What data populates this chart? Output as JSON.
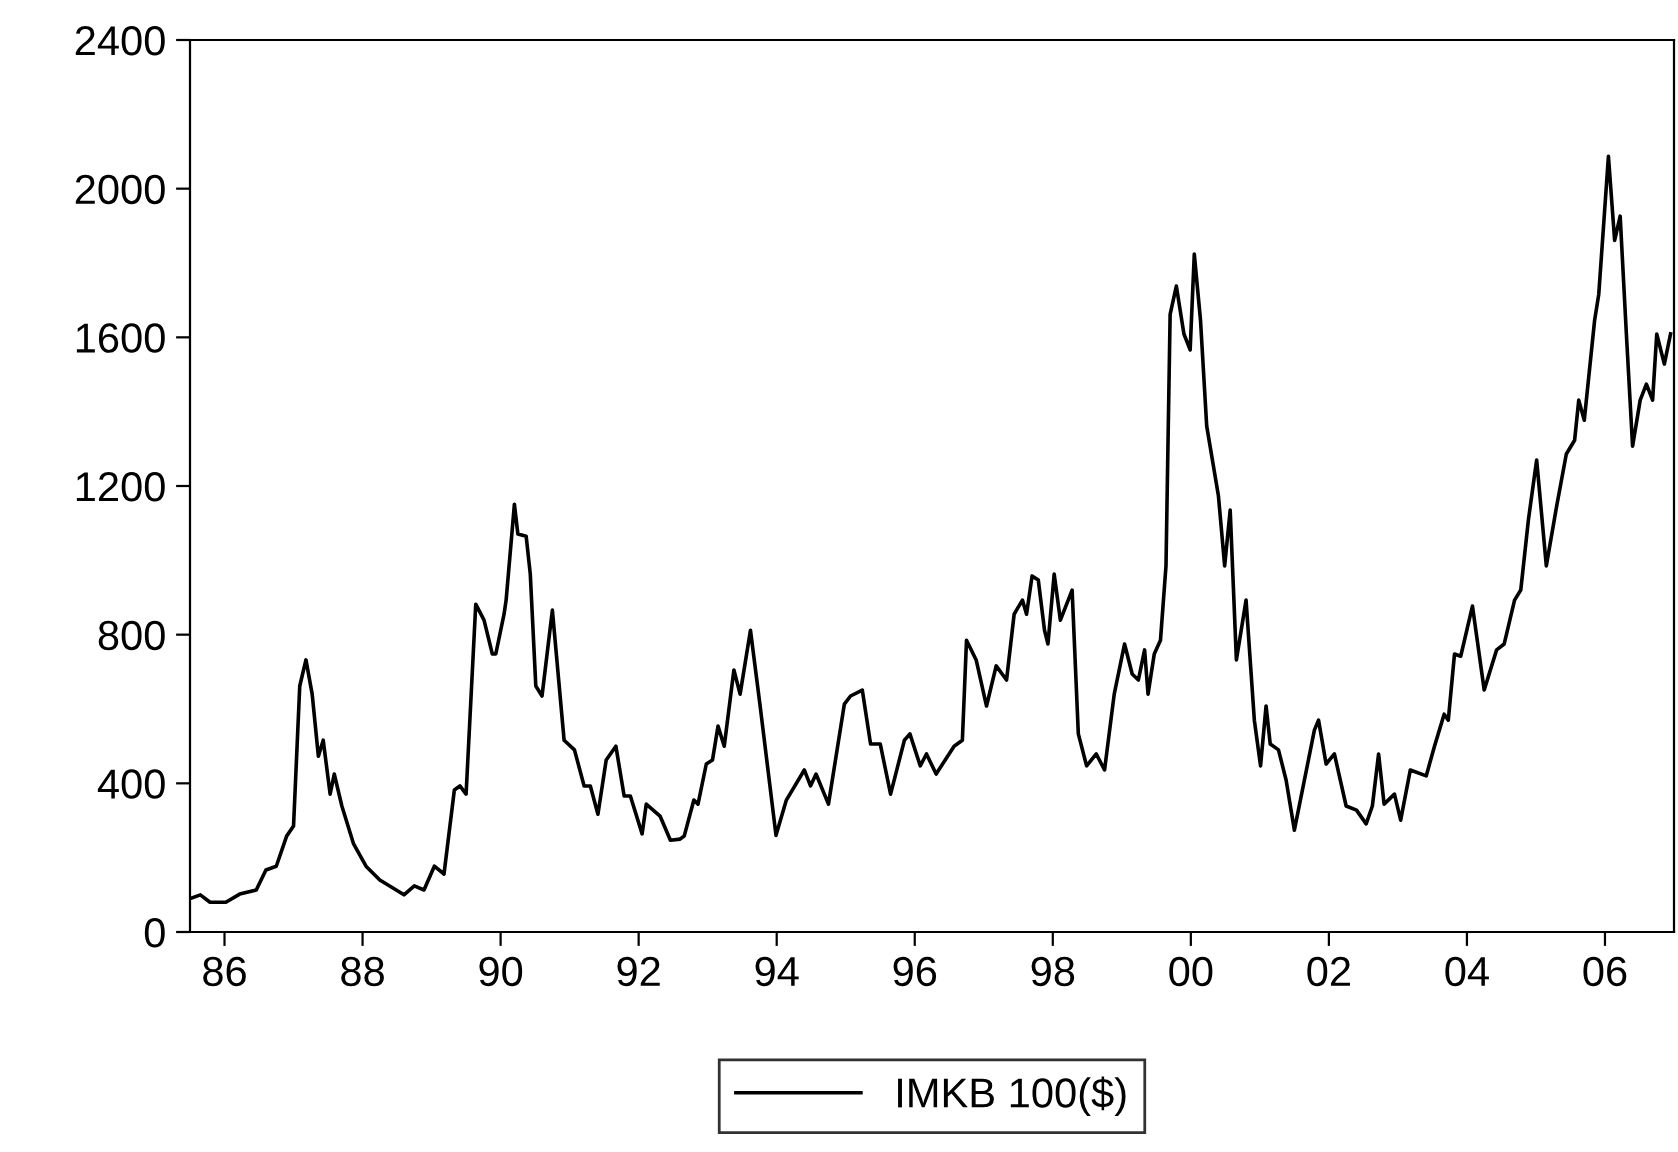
{
  "chart_data": {
    "type": "line",
    "x": [
      1985.5,
      1985.65,
      1985.79,
      1986.02,
      1986.22,
      1986.46,
      1986.6,
      1986.75,
      1986.9,
      1987.0,
      1987.09,
      1987.18,
      1987.27,
      1987.36,
      1987.43,
      1987.53,
      1987.59,
      1987.7,
      1987.87,
      1988.05,
      1988.25,
      1988.6,
      1988.75,
      1988.89,
      1989.04,
      1989.18,
      1989.33,
      1989.41,
      1989.5,
      1989.64,
      1989.76,
      1989.88,
      1989.93,
      1990.05,
      1990.08,
      1990.2,
      1990.25,
      1990.37,
      1990.43,
      1990.51,
      1990.6,
      1990.75,
      1990.92,
      1991.07,
      1991.21,
      1991.3,
      1991.41,
      1991.53,
      1991.67,
      1991.79,
      1991.88,
      1992.05,
      1992.11,
      1992.31,
      1992.46,
      1992.6,
      1992.66,
      1992.8,
      1992.86,
      1992.98,
      1993.07,
      1993.15,
      1993.24,
      1993.38,
      1993.47,
      1993.62,
      1993.76,
      1993.99,
      1994.14,
      1994.4,
      1994.49,
      1994.57,
      1994.75,
      1994.98,
      1995.07,
      1995.24,
      1995.36,
      1995.5,
      1995.65,
      1995.85,
      1995.93,
      1996.08,
      1996.17,
      1996.31,
      1996.57,
      1996.69,
      1996.75,
      1996.89,
      1997.04,
      1997.18,
      1997.33,
      1997.44,
      1997.56,
      1997.62,
      1997.7,
      1997.79,
      1997.88,
      1997.93,
      1998.02,
      1998.11,
      1998.28,
      1998.37,
      1998.49,
      1998.63,
      1998.75,
      1998.89,
      1999.04,
      1999.15,
      1999.24,
      1999.33,
      1999.38,
      1999.47,
      1999.56,
      1999.64,
      1999.7,
      1999.79,
      1999.9,
      1999.99,
      2000.05,
      2000.14,
      2000.23,
      2000.4,
      2000.49,
      2000.57,
      2000.66,
      2000.8,
      2000.92,
      2001.01,
      2001.09,
      2001.15,
      2001.27,
      2001.38,
      2001.5,
      2001.79,
      2001.85,
      2001.96,
      2002.08,
      2002.25,
      2002.4,
      2002.54,
      2002.63,
      2002.72,
      2002.8,
      2002.95,
      2003.04,
      2003.18,
      2003.41,
      2003.53,
      2003.67,
      2003.73,
      2003.82,
      2003.91,
      2004.08,
      2004.25,
      2004.43,
      2004.54,
      2004.69,
      2004.78,
      2004.89,
      2005.01,
      2005.15,
      2005.3,
      2005.44,
      2005.56,
      2005.62,
      2005.7,
      2005.85,
      2005.91,
      2006.05,
      2006.14,
      2006.22,
      2006.31,
      2006.4,
      2006.51,
      2006.6,
      2006.69,
      2006.75,
      2006.86,
      2006.95
    ],
    "series": [
      {
        "name": "IMKB 100($)",
        "color": "#000000",
        "values": [
          90,
          100,
          80,
          80,
          102,
          113,
          167,
          177,
          258,
          285,
          662,
          732,
          640,
          473,
          516,
          371,
          425,
          339,
          237,
          177,
          140,
          100,
          124,
          113,
          177,
          156,
          382,
          393,
          371,
          882,
          839,
          748,
          748,
          855,
          893,
          1151,
          1071,
          1065,
          963,
          662,
          635,
          866,
          516,
          490,
          393,
          393,
          317,
          463,
          500,
          366,
          366,
          264,
          344,
          312,
          247,
          250,
          258,
          355,
          344,
          452,
          463,
          554,
          500,
          705,
          640,
          812,
          608,
          260,
          355,
          436,
          393,
          425,
          344,
          613,
          635,
          651,
          506,
          506,
          371,
          516,
          533,
          447,
          479,
          425,
          500,
          516,
          785,
          732,
          608,
          716,
          678,
          855,
          893,
          855,
          958,
          947,
          812,
          775,
          963,
          839,
          920,
          533,
          447,
          479,
          436,
          640,
          775,
          694,
          678,
          759,
          640,
          748,
          785,
          985,
          1662,
          1738,
          1609,
          1566,
          1824,
          1646,
          1361,
          1173,
          985,
          1135,
          732,
          893,
          570,
          447,
          608,
          506,
          490,
          409,
          274,
          543,
          570,
          452,
          479,
          339,
          328,
          291,
          339,
          479,
          344,
          371,
          301,
          436,
          420,
          500,
          586,
          570,
          748,
          742,
          877,
          651,
          759,
          775,
          893,
          920,
          1108,
          1270,
          985,
          1146,
          1286,
          1323,
          1431,
          1377,
          1646,
          1716,
          2087,
          1861,
          1926,
          1609,
          1307,
          1431,
          1474,
          1431,
          1609,
          1528,
          1609
        ]
      }
    ],
    "xlim": [
      1985.5,
      2007.0
    ],
    "xticks": [
      {
        "value": 1986,
        "label": "86"
      },
      {
        "value": 1988,
        "label": "88"
      },
      {
        "value": 1990,
        "label": "90"
      },
      {
        "value": 1992,
        "label": "92"
      },
      {
        "value": 1994,
        "label": "94"
      },
      {
        "value": 1996,
        "label": "96"
      },
      {
        "value": 1998,
        "label": "98"
      },
      {
        "value": 2000,
        "label": "00"
      },
      {
        "value": 2002,
        "label": "02"
      },
      {
        "value": 2004,
        "label": "04"
      },
      {
        "value": 2006,
        "label": "06"
      }
    ],
    "ylim": [
      0,
      2400
    ],
    "yticks": [
      0,
      400,
      800,
      1200,
      1600,
      2000,
      2400
    ],
    "grid": false,
    "legend": "bottom",
    "marker": "none",
    "line_style": "solid"
  }
}
